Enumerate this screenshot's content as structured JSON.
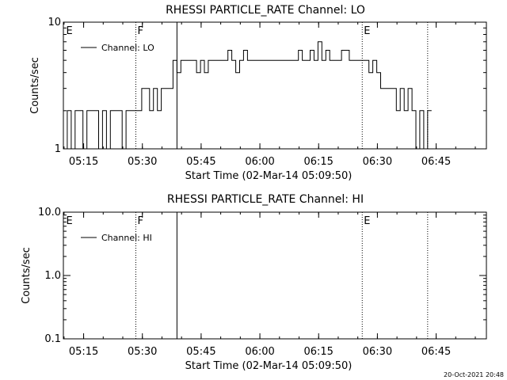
{
  "chart_data": [
    {
      "type": "line",
      "title": "RHESSI PARTICLE_RATE Channel: LO",
      "xlabel": "Start Time (02-Mar-14 05:09:50)",
      "ylabel": "Counts/sec",
      "y_scale": "log",
      "ylim": [
        1,
        10
      ],
      "xlim_min": [
        0,
        108
      ],
      "y_ticks": [
        "10",
        "1"
      ],
      "x_ticks": [
        {
          "label": "05:15",
          "min": 5.17
        },
        {
          "label": "05:30",
          "min": 20.17
        },
        {
          "label": "05:45",
          "min": 35.17
        },
        {
          "label": "06:00",
          "min": 50.17
        },
        {
          "label": "06:15",
          "min": 65.17
        },
        {
          "label": "06:30",
          "min": 80.17
        },
        {
          "label": "06:45",
          "min": 95.17
        }
      ],
      "legend": {
        "entries": [
          "Channel: LO"
        ],
        "placement": "top-left"
      },
      "annotations": [
        {
          "text": "E",
          "min": 0.3,
          "line": "none"
        },
        {
          "text": "F",
          "min": 18.5,
          "line": "dotted"
        },
        {
          "text": "",
          "min": 29.0,
          "line": "solid"
        },
        {
          "text": "E",
          "min": 76.3,
          "line": "dotted"
        },
        {
          "text": "",
          "min": 93.0,
          "line": "dotted"
        }
      ],
      "series": [
        {
          "name": "Channel: LO",
          "x_min": [
            0,
            1,
            2,
            3,
            4,
            5,
            6,
            7,
            8,
            9,
            10,
            11,
            12,
            13,
            14,
            15,
            16,
            17,
            18,
            19,
            20,
            21,
            22,
            23,
            24,
            25,
            26,
            27,
            28,
            29,
            30,
            31,
            32,
            33,
            34,
            35,
            36,
            37,
            38,
            39,
            40,
            41,
            42,
            43,
            44,
            45,
            46,
            47,
            48,
            49,
            50,
            51,
            52,
            53,
            54,
            55,
            56,
            57,
            58,
            59,
            60,
            61,
            62,
            63,
            64,
            65,
            66,
            67,
            68,
            69,
            70,
            71,
            72,
            73,
            74,
            75,
            76,
            77,
            78,
            79,
            80,
            81,
            82,
            83,
            84,
            85,
            86,
            87,
            88,
            89,
            90,
            91,
            92,
            93
          ],
          "y": [
            1,
            2,
            1,
            2,
            2,
            1,
            2,
            2,
            2,
            1,
            2,
            1,
            2,
            2,
            2,
            1,
            2,
            2,
            2,
            2,
            3,
            3,
            2,
            3,
            2,
            3,
            3,
            3,
            5,
            4,
            5,
            5,
            5,
            5,
            4,
            5,
            4,
            5,
            5,
            5,
            5,
            5,
            6,
            5,
            4,
            5,
            6,
            5,
            5,
            5,
            5,
            5,
            5,
            5,
            5,
            5,
            5,
            5,
            5,
            5,
            6,
            5,
            5,
            6,
            5,
            7,
            5,
            6,
            5,
            5,
            5,
            6,
            6,
            5,
            5,
            5,
            5,
            5,
            4,
            5,
            4,
            3,
            3,
            3,
            3,
            2,
            3,
            2,
            3,
            2,
            1,
            2,
            1,
            2
          ]
        }
      ]
    },
    {
      "type": "line",
      "title": "RHESSI PARTICLE_RATE Channel: HI",
      "xlabel": "Start Time (02-Mar-14 05:09:50)",
      "ylabel": "Counts/sec",
      "y_scale": "log",
      "ylim": [
        0.1,
        10
      ],
      "xlim_min": [
        0,
        108
      ],
      "y_ticks": [
        "10.0",
        "1.0",
        "0.1"
      ],
      "x_ticks": [
        {
          "label": "05:15",
          "min": 5.17
        },
        {
          "label": "05:30",
          "min": 20.17
        },
        {
          "label": "05:45",
          "min": 35.17
        },
        {
          "label": "06:00",
          "min": 50.17
        },
        {
          "label": "06:15",
          "min": 65.17
        },
        {
          "label": "06:30",
          "min": 80.17
        },
        {
          "label": "06:45",
          "min": 95.17
        }
      ],
      "legend": {
        "entries": [
          "Channel: HI"
        ],
        "placement": "top-left"
      },
      "annotations": [
        {
          "text": "E",
          "min": 0.3,
          "line": "none"
        },
        {
          "text": "F",
          "min": 18.5,
          "line": "dotted"
        },
        {
          "text": "",
          "min": 29.0,
          "line": "solid"
        },
        {
          "text": "E",
          "min": 76.3,
          "line": "dotted"
        },
        {
          "text": "",
          "min": 93.0,
          "line": "dotted"
        }
      ],
      "series": [
        {
          "name": "Channel: HI",
          "x_min": [],
          "y": []
        }
      ]
    }
  ],
  "footer": {
    "timestamp": "20-Oct-2021 20:48"
  }
}
